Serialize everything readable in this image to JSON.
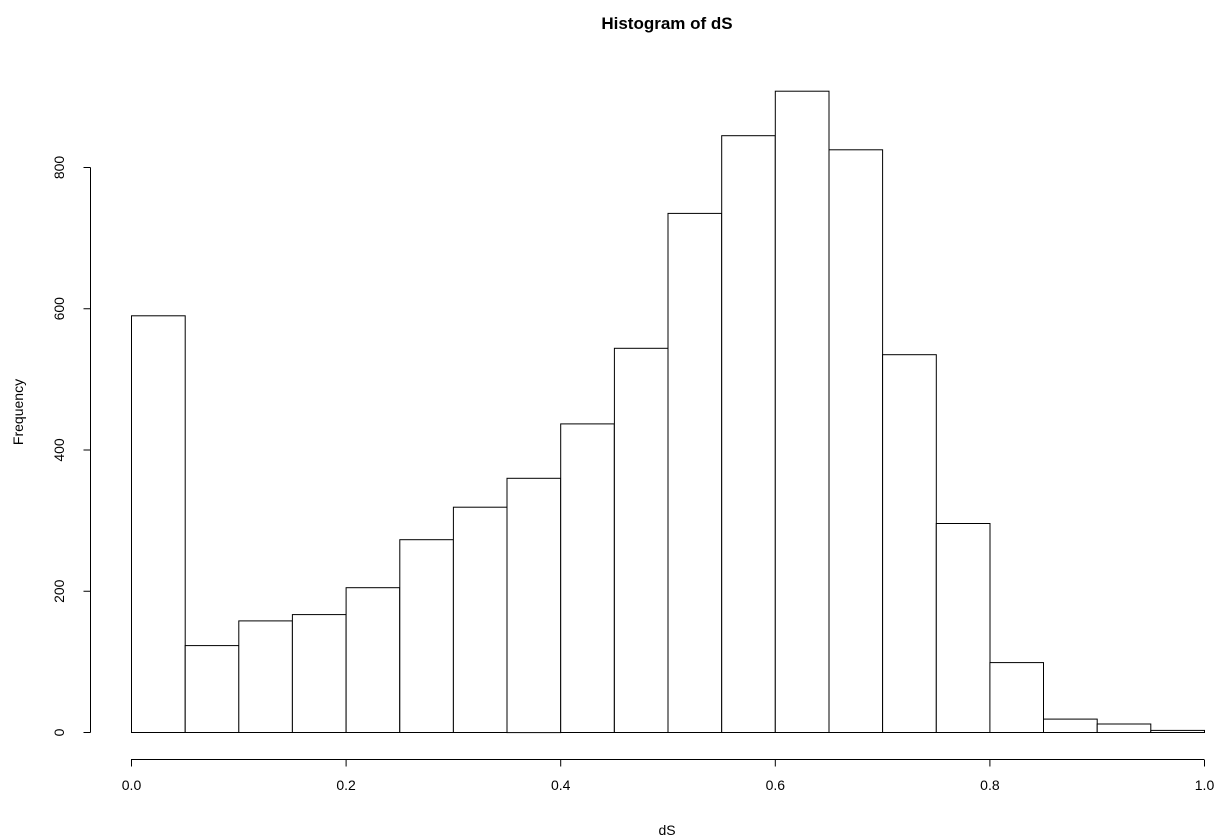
{
  "chart_data": {
    "type": "bar",
    "title": "Histogram of dS",
    "xlabel": "dS",
    "ylabel": "Frequency",
    "bin_edges": [
      0.0,
      0.05,
      0.1,
      0.15,
      0.2,
      0.25,
      0.3,
      0.35,
      0.4,
      0.45,
      0.5,
      0.55,
      0.6,
      0.65,
      0.7,
      0.75,
      0.8,
      0.85,
      0.9,
      0.95,
      1.0
    ],
    "values": [
      590,
      123,
      158,
      167,
      205,
      273,
      319,
      360,
      437,
      544,
      735,
      845,
      908,
      825,
      535,
      296,
      99,
      19,
      12,
      3
    ],
    "xlim": [
      0.0,
      1.0
    ],
    "ylim": [
      0,
      908
    ],
    "x_ticks": [
      0.0,
      0.2,
      0.4,
      0.6,
      0.8,
      1.0
    ],
    "x_tick_labels": [
      "0.0",
      "0.2",
      "0.4",
      "0.6",
      "0.8",
      "1.0"
    ],
    "y_ticks": [
      0,
      200,
      400,
      600,
      800
    ],
    "y_tick_labels": [
      "0",
      "200",
      "400",
      "600",
      "800"
    ],
    "grid": false,
    "legend": "none",
    "bar_fill": "#ffffff",
    "bar_stroke": "#000000"
  }
}
